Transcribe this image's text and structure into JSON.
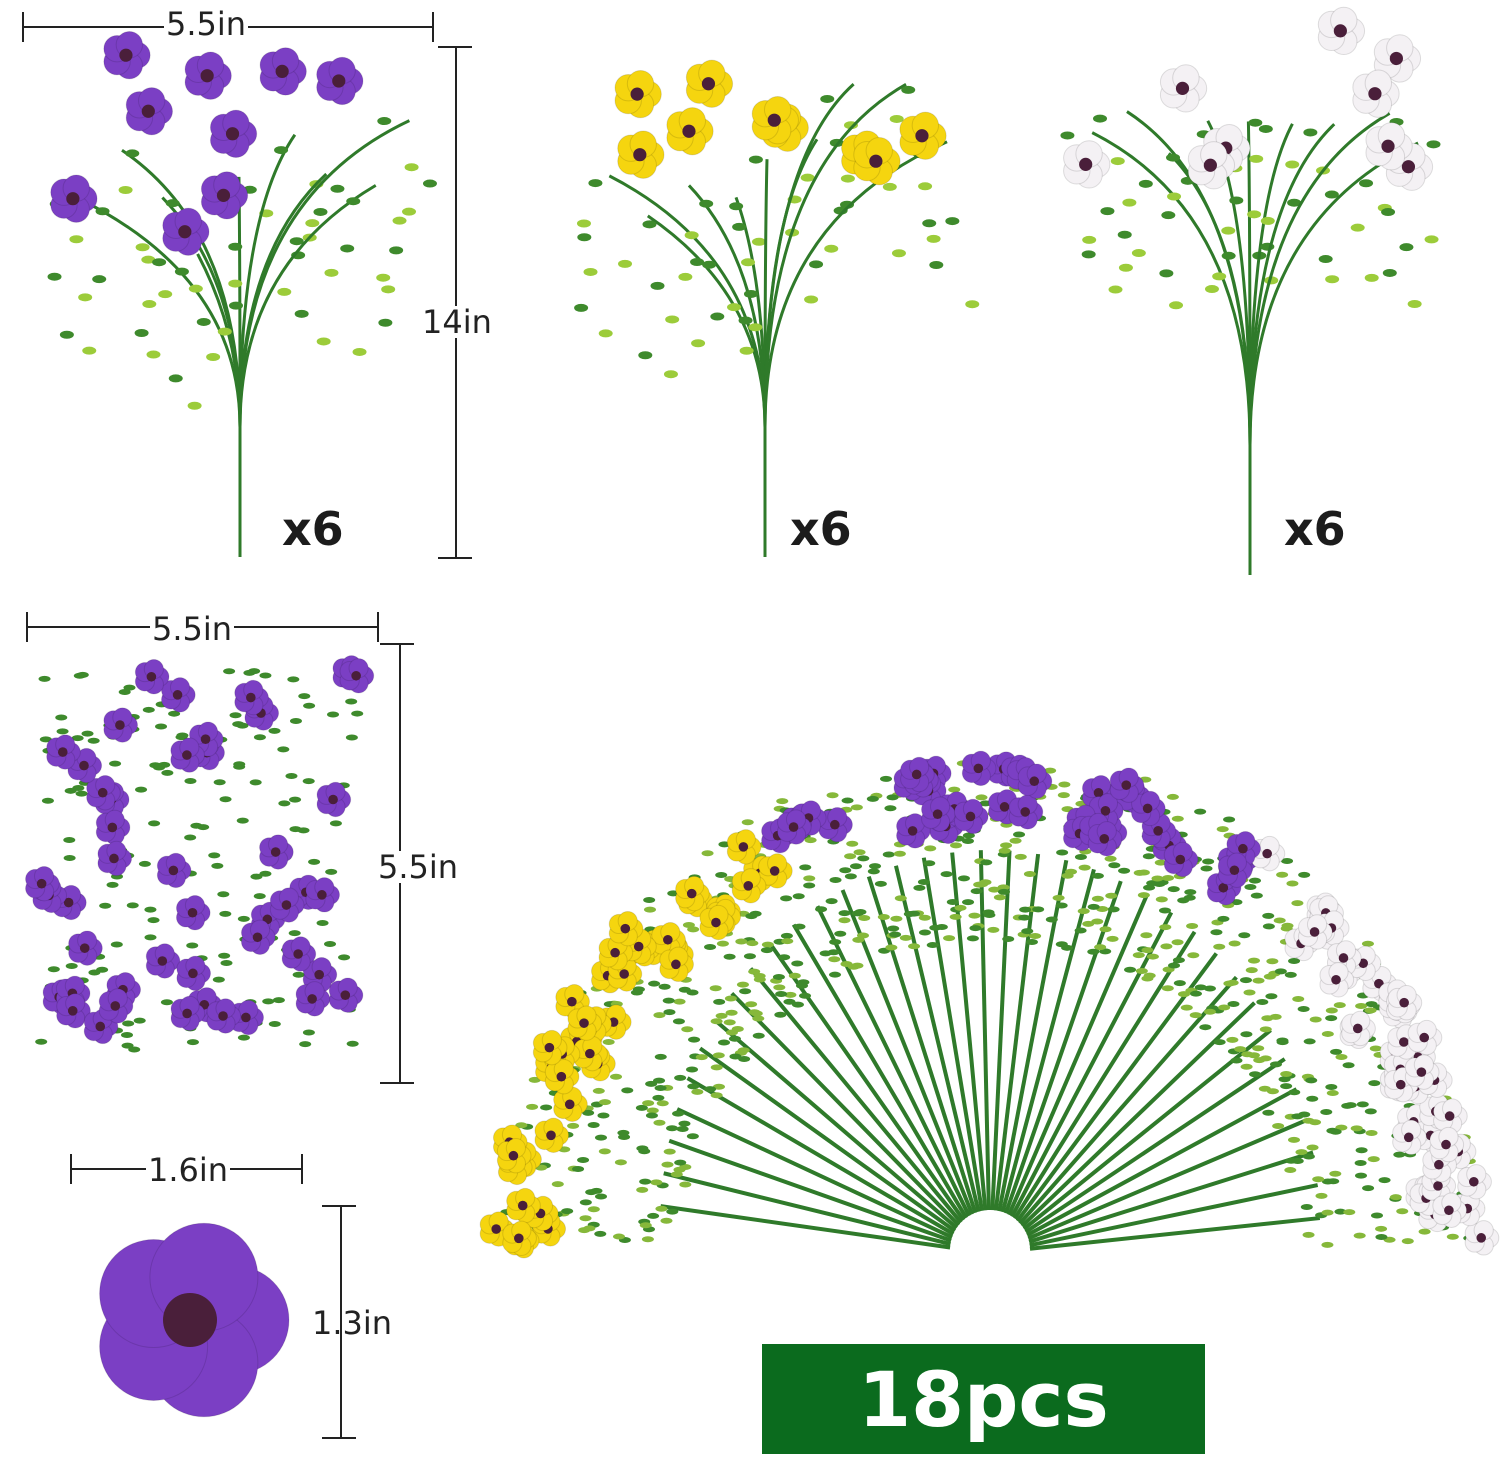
{
  "colors": {
    "purple": "#7b3fc4",
    "yellow": "#f5d50f",
    "white": "#f4f1f4",
    "green": "#2f7a2a",
    "badge": "#0b6b1e",
    "text": "#222222"
  },
  "top_row": {
    "width_label": "5.5in",
    "height_label": "14in",
    "bouquets": [
      {
        "color": "purple",
        "qty": "x6"
      },
      {
        "color": "yellow",
        "qty": "x6"
      },
      {
        "color": "white",
        "qty": "x6"
      }
    ]
  },
  "top_view": {
    "width_label": "5.5in",
    "height_label": "5.5in"
  },
  "single_flower": {
    "width_label": "1.6in",
    "height_label": "1.3in"
  },
  "arrangement": {
    "badge": "18pcs"
  }
}
